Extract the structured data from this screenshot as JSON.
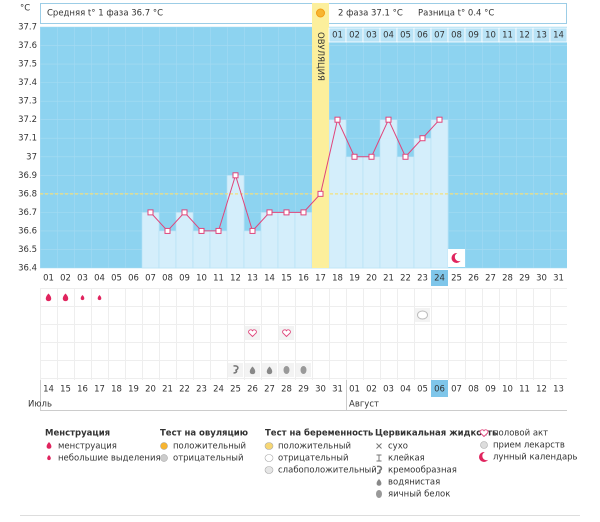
{
  "unit": "°C",
  "header": {
    "phase1": "Средняя t° 1 фаза 36.7 °С",
    "phase2": "2 фаза 37.1 °С",
    "difference": "Разница t° 0.4 °С"
  },
  "chart_data": {
    "type": "line",
    "categories": [
      "01",
      "02",
      "03",
      "04",
      "05",
      "06",
      "07",
      "08",
      "09",
      "10",
      "11",
      "12",
      "13",
      "14",
      "15",
      "16",
      "17",
      "18",
      "19",
      "20",
      "21",
      "22",
      "23",
      "24",
      "25",
      "26",
      "27",
      "28",
      "29",
      "30",
      "31"
    ],
    "values": [
      null,
      null,
      null,
      null,
      null,
      null,
      36.7,
      36.6,
      36.7,
      36.6,
      36.6,
      36.9,
      36.6,
      36.7,
      36.7,
      36.7,
      36.8,
      37.2,
      37.0,
      37.0,
      37.2,
      37.0,
      37.1,
      37.2,
      null,
      null,
      null,
      null,
      null,
      null,
      null
    ],
    "color": "#e0457b",
    "ylim": [
      36.4,
      37.7
    ],
    "yticks": [
      36.4,
      36.5,
      36.6,
      36.7,
      36.8,
      36.9,
      37,
      37.1,
      37.2,
      37.3,
      37.4,
      37.5,
      37.6,
      37.7
    ],
    "coverline": 36.8,
    "ovulation_day": "17",
    "ovulation_label": "ОВУЛЯЦИЯ",
    "phase2_days": [
      "01",
      "02",
      "03",
      "04",
      "05",
      "06",
      "07",
      "08",
      "09",
      "10",
      "11",
      "12",
      "13",
      "14"
    ],
    "current_day": "24"
  },
  "calendar": {
    "dates": [
      "14",
      "15",
      "16",
      "17",
      "18",
      "19",
      "20",
      "21",
      "22",
      "23",
      "24",
      "25",
      "26",
      "27",
      "28",
      "29",
      "30",
      "31",
      "01",
      "02",
      "03",
      "04",
      "05",
      "06",
      "07",
      "08",
      "09",
      "10",
      "11",
      "12",
      "13"
    ],
    "weekends": [
      "14",
      "15",
      "21",
      "22",
      "28",
      "29",
      "04",
      "05",
      "11",
      "12"
    ],
    "months": [
      {
        "name": "Июль",
        "from": "14"
      },
      {
        "name": "Август",
        "from": "01"
      }
    ]
  },
  "events": {
    "menstruation": [
      "01",
      "02"
    ],
    "spotting": [
      "03",
      "04"
    ],
    "pregnancy_negative": [
      "23"
    ],
    "sex": [
      "13",
      "15"
    ],
    "fluid": [
      {
        "day": "12",
        "kind": "creamy"
      },
      {
        "day": "13",
        "kind": "watery"
      },
      {
        "day": "14",
        "kind": "watery"
      },
      {
        "day": "15",
        "kind": "eggwhite"
      },
      {
        "day": "16",
        "kind": "eggwhite"
      }
    ],
    "lunar": [
      "25"
    ]
  },
  "legend": [
    {
      "title": "Менструация",
      "items": [
        "менструация",
        "небольшие выделения"
      ]
    },
    {
      "title": "Тест на овуляцию",
      "items": [
        "положительный",
        "отрицательный"
      ]
    },
    {
      "title": "Тест на беременность",
      "items": [
        "положительный",
        "отрицательный",
        "слабоположительный"
      ]
    },
    {
      "title": "Цервикальная жидкость",
      "items": [
        "сухо",
        "клейкая",
        "кремообразная",
        "водянистая",
        "яичный белок"
      ]
    },
    {
      "items": [
        "половой акт",
        "прием лекарств",
        "лунный календарь"
      ]
    }
  ]
}
